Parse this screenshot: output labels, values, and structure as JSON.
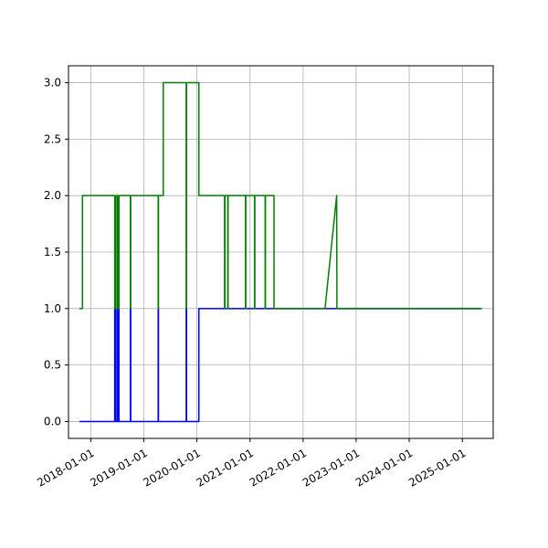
{
  "chart_data": {
    "type": "line",
    "title": "",
    "xlabel": "",
    "ylabel": "",
    "grid": true,
    "x_type": "date",
    "xlim": [
      "2017-08-01",
      "2025-08-01"
    ],
    "ylim": [
      -0.15,
      3.15
    ],
    "x_ticks": [
      "2018-01-01",
      "2019-01-01",
      "2020-01-01",
      "2021-01-01",
      "2022-01-01",
      "2023-01-01",
      "2024-01-01",
      "2025-01-01"
    ],
    "y_ticks": [
      "0.0",
      "0.5",
      "1.0",
      "1.5",
      "2.0",
      "2.5",
      "3.0"
    ],
    "series": [
      {
        "color": "#0000ff",
        "points": [
          [
            "2017-10-15",
            0
          ],
          [
            "2018-06-15",
            0
          ],
          [
            "2018-06-15",
            1
          ],
          [
            "2018-06-20",
            1
          ],
          [
            "2018-06-20",
            0
          ],
          [
            "2018-07-01",
            0
          ],
          [
            "2018-07-01",
            1
          ],
          [
            "2018-07-05",
            1
          ],
          [
            "2018-07-05",
            0
          ],
          [
            "2018-07-10",
            0
          ],
          [
            "2018-07-10",
            1
          ],
          [
            "2018-07-14",
            1
          ],
          [
            "2018-07-14",
            0
          ],
          [
            "2018-10-01",
            0
          ],
          [
            "2018-10-01",
            1
          ],
          [
            "2018-10-03",
            1
          ],
          [
            "2018-10-03",
            0
          ],
          [
            "2019-04-10",
            0
          ],
          [
            "2019-04-10",
            1
          ],
          [
            "2019-04-12",
            1
          ],
          [
            "2019-04-12",
            0
          ],
          [
            "2019-10-20",
            0
          ],
          [
            "2019-10-20",
            1
          ],
          [
            "2019-10-22",
            1
          ],
          [
            "2019-10-22",
            0
          ],
          [
            "2020-01-15",
            0
          ],
          [
            "2020-01-15",
            1
          ],
          [
            "2025-05-15",
            1
          ]
        ]
      },
      {
        "color": "#008000",
        "points": [
          [
            "2017-10-15",
            1
          ],
          [
            "2017-11-05",
            1
          ],
          [
            "2017-11-05",
            2
          ],
          [
            "2018-06-15",
            2
          ],
          [
            "2018-06-15",
            1
          ],
          [
            "2018-06-20",
            1
          ],
          [
            "2018-06-20",
            2
          ],
          [
            "2018-07-01",
            2
          ],
          [
            "2018-07-01",
            1
          ],
          [
            "2018-07-05",
            1
          ],
          [
            "2018-07-05",
            2
          ],
          [
            "2018-07-10",
            2
          ],
          [
            "2018-07-10",
            1
          ],
          [
            "2018-07-14",
            1
          ],
          [
            "2018-07-14",
            2
          ],
          [
            "2018-10-01",
            2
          ],
          [
            "2018-10-01",
            1
          ],
          [
            "2018-10-03",
            1
          ],
          [
            "2018-10-03",
            2
          ],
          [
            "2019-04-10",
            2
          ],
          [
            "2019-04-10",
            1
          ],
          [
            "2019-04-12",
            1
          ],
          [
            "2019-04-12",
            2
          ],
          [
            "2019-05-15",
            2
          ],
          [
            "2019-05-15",
            3
          ],
          [
            "2019-10-20",
            3
          ],
          [
            "2019-10-20",
            1
          ],
          [
            "2019-10-22",
            1
          ],
          [
            "2019-10-22",
            3
          ],
          [
            "2020-01-15",
            3
          ],
          [
            "2020-01-15",
            2
          ],
          [
            "2020-07-10",
            2
          ],
          [
            "2020-07-10",
            1
          ],
          [
            "2020-07-12",
            1
          ],
          [
            "2020-07-12",
            2
          ],
          [
            "2020-08-01",
            2
          ],
          [
            "2020-08-01",
            1
          ],
          [
            "2020-08-03",
            1
          ],
          [
            "2020-08-03",
            2
          ],
          [
            "2020-12-01",
            2
          ],
          [
            "2020-12-01",
            1
          ],
          [
            "2020-12-03",
            1
          ],
          [
            "2020-12-03",
            2
          ],
          [
            "2021-02-01",
            2
          ],
          [
            "2021-02-01",
            1
          ],
          [
            "2021-02-03",
            1
          ],
          [
            "2021-02-03",
            2
          ],
          [
            "2021-04-15",
            2
          ],
          [
            "2021-04-15",
            1
          ],
          [
            "2021-04-17",
            1
          ],
          [
            "2021-04-17",
            2
          ],
          [
            "2021-06-15",
            2
          ],
          [
            "2021-06-15",
            1
          ],
          [
            "2022-06-01",
            1
          ],
          [
            "2022-08-20",
            2
          ],
          [
            "2022-08-22",
            1
          ],
          [
            "2025-05-15",
            1
          ]
        ]
      }
    ]
  }
}
